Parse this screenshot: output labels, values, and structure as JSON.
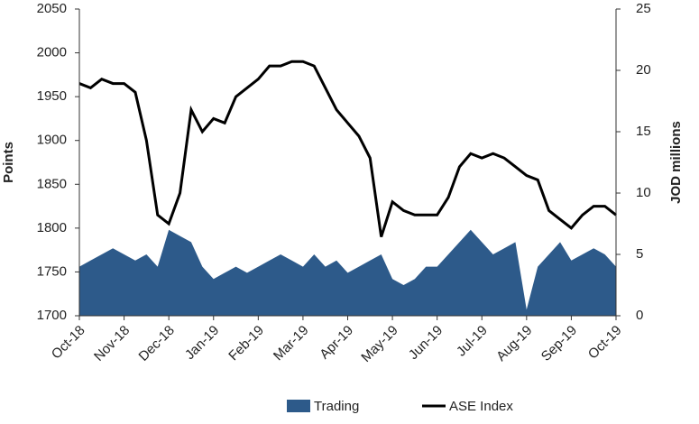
{
  "chart_data": {
    "type": "line-area",
    "categories": [
      "Oct-18",
      null,
      null,
      null,
      "Nov-18",
      null,
      null,
      null,
      "Dec-18",
      null,
      null,
      null,
      "Jan-19",
      null,
      null,
      null,
      "Feb-19",
      null,
      null,
      null,
      "Mar-19",
      null,
      null,
      null,
      "Apr-19",
      null,
      null,
      null,
      "May-19",
      null,
      null,
      null,
      "Jun-19",
      null,
      null,
      null,
      "Jul-19",
      null,
      null,
      null,
      "Aug-19",
      null,
      null,
      null,
      "Sep-19",
      null,
      null,
      null,
      "Oct-19"
    ],
    "series": [
      {
        "name": "Trading",
        "color": "#2d5a8a",
        "axis": "y2",
        "kind": "area",
        "values": [
          4,
          4.5,
          5,
          5.5,
          5,
          4.5,
          5,
          4,
          7,
          6.5,
          6,
          4,
          3,
          3.5,
          4,
          3.5,
          4,
          4.5,
          5,
          4.5,
          4,
          5,
          4,
          4.5,
          3.5,
          4,
          4.5,
          5,
          3,
          2.5,
          3,
          4,
          4,
          5,
          6,
          7,
          6,
          5,
          5.5,
          6,
          0.5,
          4,
          5,
          6,
          4.5,
          5,
          5.5,
          5,
          4
        ]
      },
      {
        "name": "ASE Index",
        "color": "#000000",
        "kind": "line",
        "values": [
          1965,
          1960,
          1970,
          1965,
          1965,
          1955,
          1900,
          1815,
          1805,
          1840,
          1935,
          1910,
          1925,
          1920,
          1950,
          1960,
          1970,
          1985,
          1985,
          1990,
          1990,
          1985,
          1960,
          1935,
          1920,
          1905,
          1880,
          1790,
          1830,
          1820,
          1815,
          1815,
          1815,
          1835,
          1870,
          1885,
          1880,
          1885,
          1880,
          1870,
          1860,
          1855,
          1820,
          1810,
          1800,
          1815,
          1825,
          1825,
          1815
        ]
      }
    ],
    "ylabel": "Points",
    "y2label": "JOD millions",
    "ylim": [
      1700,
      2050
    ],
    "yticks": [
      1700,
      1750,
      1800,
      1850,
      1900,
      1950,
      2000,
      2050
    ],
    "y2lim": [
      0,
      25
    ],
    "y2ticks": [
      0,
      5,
      10,
      15,
      20,
      25
    ]
  }
}
